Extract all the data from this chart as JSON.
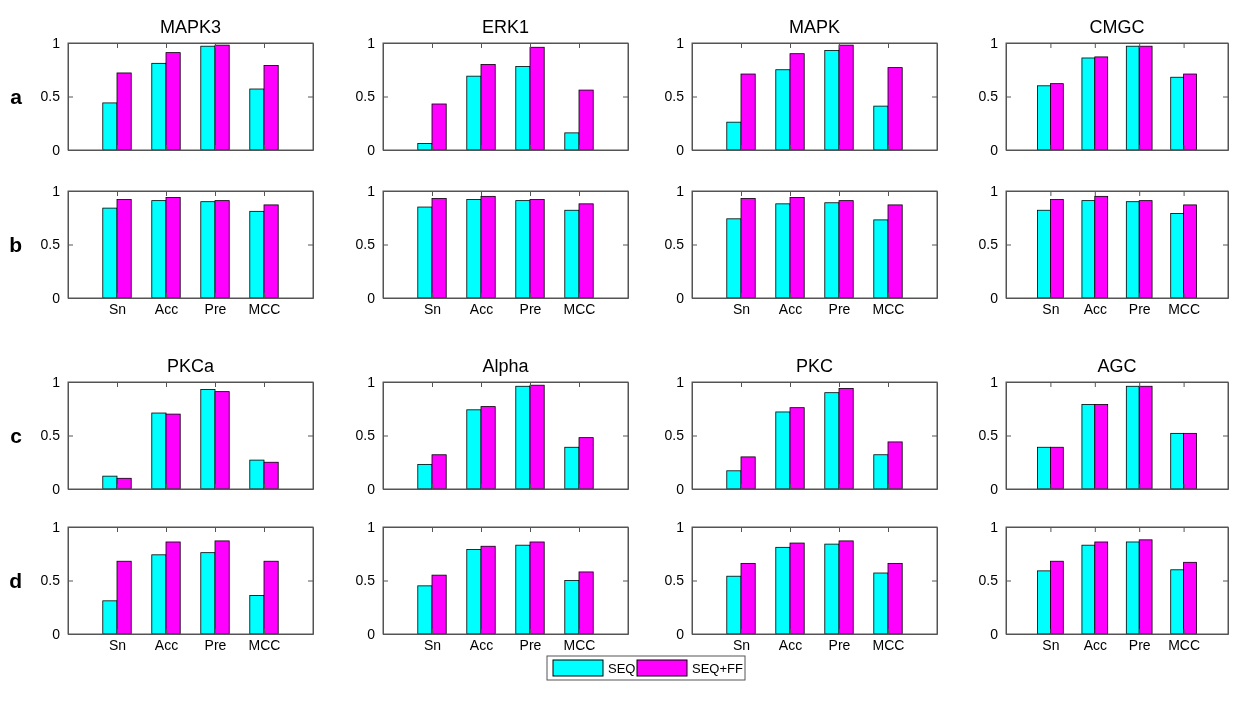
{
  "chart_data": [
    {
      "type": "bar",
      "title": "MAPK3",
      "annotations": [
        "a"
      ],
      "legend": "bottom",
      "tick_labels": "y",
      "categories": [
        null,
        null,
        null,
        null
      ],
      "ylim": [
        0,
        1
      ],
      "yticks": [
        0,
        0.5,
        1
      ],
      "series": [
        {
          "name": "SEQ",
          "color": "#00ffff",
          "values": [
            0.44,
            0.81,
            0.97,
            0.57
          ]
        },
        {
          "name": "SEQ+FF",
          "color": "#ff00ff",
          "values": [
            0.72,
            0.91,
            0.98,
            0.79
          ]
        }
      ]
    },
    {
      "type": "bar",
      "title": "ERK1",
      "tick_labels": "y",
      "categories": [
        null,
        null,
        null,
        null
      ],
      "ylim": [
        0,
        1
      ],
      "yticks": [
        0,
        0.5,
        1
      ],
      "series": [
        {
          "color": "#00ffff",
          "values": [
            0.06,
            0.69,
            0.78,
            0.16
          ]
        },
        {
          "color": "#ff00ff",
          "values": [
            0.43,
            0.8,
            0.96,
            0.56
          ]
        }
      ]
    },
    {
      "type": "bar",
      "title": "MAPK",
      "tick_labels": "y",
      "categories": [
        null,
        null,
        null,
        null
      ],
      "ylim": [
        0,
        1
      ],
      "yticks": [
        0,
        0.5,
        1
      ],
      "series": [
        {
          "color": "#00ffff",
          "values": [
            0.26,
            0.75,
            0.93,
            0.41
          ]
        },
        {
          "color": "#ff00ff",
          "values": [
            0.71,
            0.9,
            0.98,
            0.77
          ]
        }
      ]
    },
    {
      "type": "bar",
      "title": "CMGC",
      "tick_labels": "y",
      "categories": [
        null,
        null,
        null,
        null
      ],
      "ylim": [
        0,
        1
      ],
      "yticks": [
        0,
        0.5,
        1
      ],
      "series": [
        {
          "color": "#00ffff",
          "values": [
            0.6,
            0.86,
            0.97,
            0.68
          ]
        },
        {
          "color": "#ff00ff",
          "values": [
            0.62,
            0.87,
            0.97,
            0.71
          ]
        }
      ]
    },
    {
      "type": "bar",
      "annotations": [
        "b"
      ],
      "categories": [
        "Sn",
        "Acc",
        "Pre",
        "MCC"
      ],
      "ylim": [
        0,
        1
      ],
      "yticks": [
        0,
        0.5,
        1
      ],
      "series": [
        {
          "color": "#00ffff",
          "values": [
            0.84,
            0.91,
            0.9,
            0.81
          ]
        },
        {
          "color": "#ff00ff",
          "values": [
            0.92,
            0.94,
            0.91,
            0.87
          ]
        }
      ]
    },
    {
      "type": "bar",
      "categories": [
        "Sn",
        "Acc",
        "Pre",
        "MCC"
      ],
      "ylim": [
        0,
        1
      ],
      "yticks": [
        0,
        0.5,
        1
      ],
      "series": [
        {
          "color": "#00ffff",
          "values": [
            0.85,
            0.92,
            0.91,
            0.82
          ]
        },
        {
          "color": "#ff00ff",
          "values": [
            0.93,
            0.95,
            0.92,
            0.88
          ]
        }
      ]
    },
    {
      "type": "bar",
      "categories": [
        "Sn",
        "Acc",
        "Pre",
        "MCC"
      ],
      "ylim": [
        0,
        1
      ],
      "yticks": [
        0,
        0.5,
        1
      ],
      "series": [
        {
          "color": "#00ffff",
          "values": [
            0.74,
            0.88,
            0.89,
            0.73
          ]
        },
        {
          "color": "#ff00ff",
          "values": [
            0.93,
            0.94,
            0.91,
            0.87
          ]
        }
      ]
    },
    {
      "type": "bar",
      "categories": [
        "Sn",
        "Acc",
        "Pre",
        "MCC"
      ],
      "ylim": [
        0,
        1
      ],
      "yticks": [
        0,
        0.5,
        1
      ],
      "series": [
        {
          "color": "#00ffff",
          "values": [
            0.82,
            0.91,
            0.9,
            0.79
          ]
        },
        {
          "color": "#ff00ff",
          "values": [
            0.92,
            0.95,
            0.91,
            0.87
          ]
        }
      ]
    },
    {
      "type": "bar",
      "title": "PKCa",
      "annotations": [
        "c"
      ],
      "tick_labels": "y",
      "categories": [
        null,
        null,
        null,
        null
      ],
      "ylim": [
        0,
        1
      ],
      "yticks": [
        0,
        0.5,
        1
      ],
      "series": [
        {
          "color": "#00ffff",
          "values": [
            0.12,
            0.71,
            0.93,
            0.27
          ]
        },
        {
          "color": "#ff00ff",
          "values": [
            0.1,
            0.7,
            0.91,
            0.25
          ]
        }
      ]
    },
    {
      "type": "bar",
      "title": "Alpha",
      "tick_labels": "y",
      "categories": [
        null,
        null,
        null,
        null
      ],
      "ylim": [
        0,
        1
      ],
      "yticks": [
        0,
        0.5,
        1
      ],
      "series": [
        {
          "color": "#00ffff",
          "values": [
            0.23,
            0.74,
            0.96,
            0.39
          ]
        },
        {
          "color": "#ff00ff",
          "values": [
            0.32,
            0.77,
            0.97,
            0.48
          ]
        }
      ]
    },
    {
      "type": "bar",
      "title": "PKC",
      "tick_labels": "y",
      "categories": [
        null,
        null,
        null,
        null
      ],
      "ylim": [
        0,
        1
      ],
      "yticks": [
        0,
        0.5,
        1
      ],
      "series": [
        {
          "color": "#00ffff",
          "values": [
            0.17,
            0.72,
            0.9,
            0.32
          ]
        },
        {
          "color": "#ff00ff",
          "values": [
            0.3,
            0.76,
            0.94,
            0.44
          ]
        }
      ]
    },
    {
      "type": "bar",
      "title": "AGC",
      "tick_labels": "y",
      "categories": [
        null,
        null,
        null,
        null
      ],
      "ylim": [
        0,
        1
      ],
      "yticks": [
        0,
        0.5,
        1
      ],
      "series": [
        {
          "color": "#00ffff",
          "values": [
            0.39,
            0.79,
            0.96,
            0.52
          ]
        },
        {
          "color": "#ff00ff",
          "values": [
            0.39,
            0.79,
            0.96,
            0.52
          ]
        }
      ]
    },
    {
      "type": "bar",
      "annotations": [
        "d"
      ],
      "categories": [
        "Sn",
        "Acc",
        "Pre",
        "MCC"
      ],
      "ylim": [
        0,
        1
      ],
      "yticks": [
        0,
        0.5,
        1
      ],
      "series": [
        {
          "color": "#00ffff",
          "values": [
            0.31,
            0.74,
            0.76,
            0.36
          ]
        },
        {
          "color": "#ff00ff",
          "values": [
            0.68,
            0.86,
            0.87,
            0.68
          ]
        }
      ]
    },
    {
      "type": "bar",
      "categories": [
        "Sn",
        "Acc",
        "Pre",
        "MCC"
      ],
      "ylim": [
        0,
        1
      ],
      "yticks": [
        0,
        0.5,
        1
      ],
      "series": [
        {
          "color": "#00ffff",
          "values": [
            0.45,
            0.79,
            0.83,
            0.5
          ]
        },
        {
          "color": "#ff00ff",
          "values": [
            0.55,
            0.82,
            0.86,
            0.58
          ]
        }
      ]
    },
    {
      "type": "bar",
      "categories": [
        "Sn",
        "Acc",
        "Pre",
        "MCC"
      ],
      "ylim": [
        0,
        1
      ],
      "yticks": [
        0,
        0.5,
        1
      ],
      "series": [
        {
          "color": "#00ffff",
          "values": [
            0.54,
            0.81,
            0.84,
            0.57
          ]
        },
        {
          "color": "#ff00ff",
          "values": [
            0.66,
            0.85,
            0.87,
            0.66
          ]
        }
      ]
    },
    {
      "type": "bar",
      "categories": [
        "Sn",
        "Acc",
        "Pre",
        "MCC"
      ],
      "ylim": [
        0,
        1
      ],
      "yticks": [
        0,
        0.5,
        1
      ],
      "series": [
        {
          "color": "#00ffff",
          "values": [
            0.59,
            0.83,
            0.86,
            0.6
          ]
        },
        {
          "color": "#ff00ff",
          "values": [
            0.68,
            0.86,
            0.88,
            0.67
          ]
        }
      ]
    }
  ]
}
